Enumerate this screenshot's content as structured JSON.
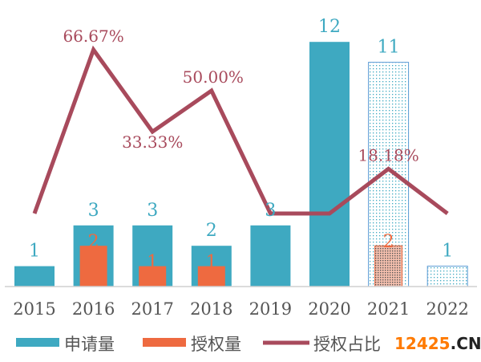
{
  "chart_data": {
    "type": "bar+line",
    "categories": [
      "2015",
      "2016",
      "2017",
      "2018",
      "2019",
      "2020",
      "2021",
      "2022"
    ],
    "series": [
      {
        "name": "申请量",
        "type": "bar",
        "color": "#3ea9c1",
        "values": [
          1,
          3,
          3,
          2,
          3,
          12,
          11,
          1
        ],
        "labels": [
          "1",
          "3",
          "3",
          "2",
          "3",
          "12",
          "11",
          "1"
        ]
      },
      {
        "name": "授权量",
        "type": "bar",
        "color": "#ee6a40",
        "values": [
          0,
          2,
          1,
          1,
          0,
          0,
          2,
          0
        ],
        "labels": [
          "",
          "2",
          "1",
          "1",
          "",
          "",
          "2",
          ""
        ]
      },
      {
        "name": "授权占比",
        "type": "line",
        "color": "#a84a5c",
        "values": [
          0,
          66.67,
          33.33,
          50,
          0,
          0,
          18.18,
          0
        ],
        "labels": [
          "",
          "66.67%",
          "33.33%",
          "50.00%",
          "",
          "",
          "18.18%",
          ""
        ]
      }
    ],
    "patterned_categories": [
      "2021",
      "2022"
    ],
    "legend": "bottom",
    "grid": false
  },
  "watermark": {
    "prefix": "12425",
    "suffix": ".CN"
  }
}
